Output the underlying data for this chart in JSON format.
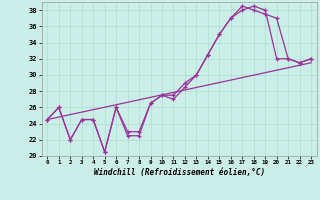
{
  "xlabel": "Windchill (Refroidissement éolien,°C)",
  "background_color": "#cceee8",
  "grid_color": "#aaddcc",
  "line_color": "#993399",
  "xlim": [
    -0.5,
    23.5
  ],
  "ylim": [
    20,
    39
  ],
  "yticks": [
    20,
    22,
    24,
    26,
    28,
    30,
    32,
    34,
    36,
    38
  ],
  "xticks": [
    0,
    1,
    2,
    3,
    4,
    5,
    6,
    7,
    8,
    9,
    10,
    11,
    12,
    13,
    14,
    15,
    16,
    17,
    18,
    19,
    20,
    21,
    22,
    23
  ],
  "line1_x": [
    0,
    1,
    2,
    3,
    4,
    5,
    6,
    7,
    8,
    9,
    10,
    11,
    12,
    13,
    14,
    15,
    16,
    17,
    18,
    19,
    20,
    21,
    22,
    23
  ],
  "line1_y": [
    24.5,
    26,
    22,
    24.5,
    24.5,
    20.5,
    26,
    23,
    23,
    26.5,
    27.5,
    27.5,
    29,
    30,
    32.5,
    35,
    37,
    38,
    38.5,
    38,
    32,
    32,
    31.5,
    32
  ],
  "line2_x": [
    0,
    1,
    2,
    3,
    4,
    5,
    6,
    7,
    8,
    9,
    10,
    11,
    12,
    13,
    14,
    15,
    16,
    17,
    18,
    19,
    20,
    21,
    22,
    23
  ],
  "line2_y": [
    24.5,
    26,
    22,
    24.5,
    24.5,
    20.5,
    26,
    22.5,
    22.5,
    26.5,
    27.5,
    27,
    28.5,
    30,
    32.5,
    35,
    37,
    38.5,
    38,
    37.5,
    37,
    32,
    31.5,
    32
  ],
  "line3_x": [
    0,
    23
  ],
  "line3_y": [
    24.5,
    31.5
  ]
}
